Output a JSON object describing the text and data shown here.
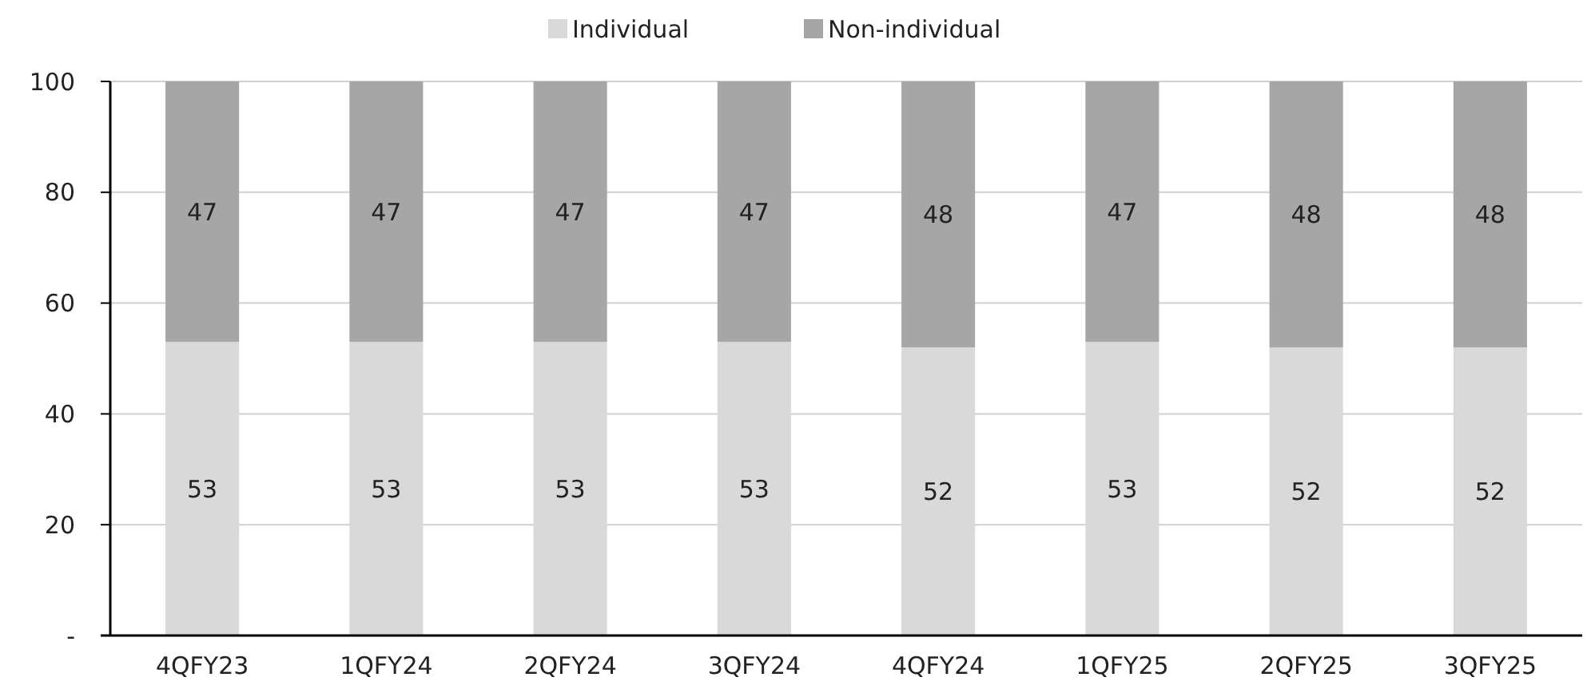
{
  "chart_data": {
    "type": "bar",
    "stacked": true,
    "categories": [
      "4QFY23",
      "1QFY24",
      "2QFY24",
      "3QFY24",
      "4QFY24",
      "1QFY25",
      "2QFY25",
      "3QFY25"
    ],
    "series": [
      {
        "name": "Individual",
        "color": "#d9d9d9",
        "values": [
          53,
          53,
          53,
          53,
          52,
          53,
          52,
          52
        ]
      },
      {
        "name": "Non-individual",
        "color": "#a6a6a6",
        "values": [
          47,
          47,
          47,
          47,
          48,
          47,
          48,
          48
        ]
      }
    ],
    "ylim": [
      0,
      100
    ],
    "yticks": [
      {
        "value": 0,
        "label": "-"
      },
      20,
      40,
      60,
      80,
      100
    ],
    "grid": "y",
    "legend": "top",
    "data_labels": true
  }
}
